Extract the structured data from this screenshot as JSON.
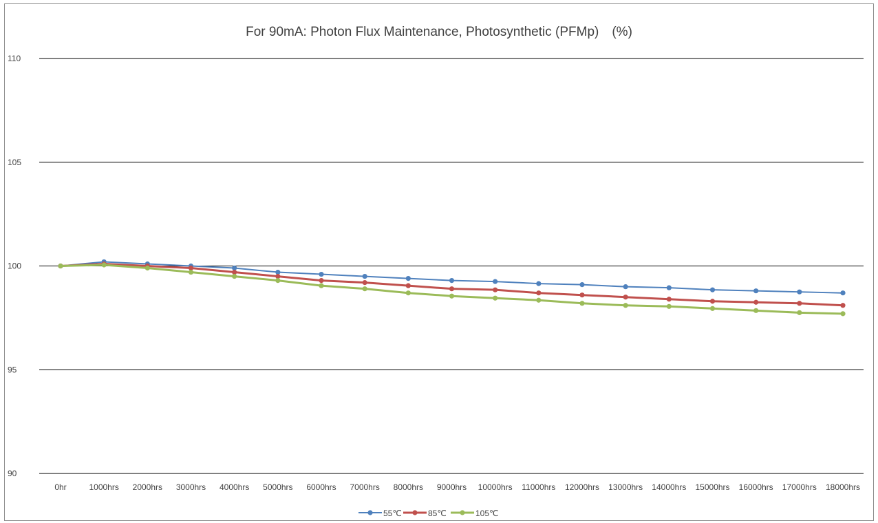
{
  "chart_data": {
    "type": "line",
    "title": "For 90mA: Photon Flux Maintenance, Photosynthetic (PFMp)　(%)",
    "xlabel": "",
    "ylabel": "",
    "ylim": [
      90,
      110
    ],
    "yticks": [
      "90",
      "95",
      "100",
      "105",
      "110"
    ],
    "grid": true,
    "legend_position": "bottom",
    "categories": [
      "0hr",
      "1000hrs",
      "2000hrs",
      "3000hrs",
      "4000hrs",
      "5000hrs",
      "6000hrs",
      "7000hrs",
      "8000hrs",
      "9000hrs",
      "10000hrs",
      "11000hrs",
      "12000hrs",
      "13000hrs",
      "14000hrs",
      "15000hrs",
      "16000hrs",
      "17000hrs",
      "18000hrs"
    ],
    "series": [
      {
        "name": "55℃",
        "color": "#4f81bd",
        "values": [
          100.0,
          100.2,
          100.1,
          100.0,
          99.9,
          99.7,
          99.6,
          99.5,
          99.4,
          99.3,
          99.25,
          99.15,
          99.1,
          99.0,
          98.95,
          98.85,
          98.8,
          98.75,
          98.7
        ]
      },
      {
        "name": "85℃",
        "color": "#c0504d",
        "values": [
          100.0,
          100.1,
          100.0,
          99.9,
          99.7,
          99.5,
          99.3,
          99.2,
          99.05,
          98.9,
          98.85,
          98.7,
          98.6,
          98.5,
          98.4,
          98.3,
          98.25,
          98.2,
          98.1
        ]
      },
      {
        "name": "105℃",
        "color": "#9bbb59",
        "values": [
          100.0,
          100.05,
          99.9,
          99.7,
          99.5,
          99.3,
          99.05,
          98.9,
          98.7,
          98.55,
          98.45,
          98.35,
          98.2,
          98.1,
          98.05,
          97.95,
          97.85,
          97.75,
          97.7
        ]
      }
    ]
  }
}
